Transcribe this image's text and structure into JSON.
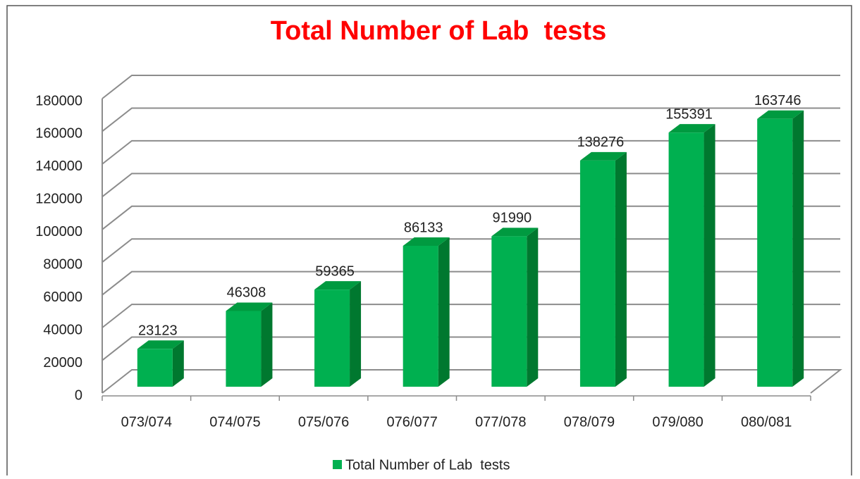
{
  "chart_data": {
    "type": "bar3d",
    "title": "Total Number of Lab  tests",
    "categories": [
      "073/074",
      "074/075",
      "075/076",
      "076/077",
      "077/078",
      "078/079",
      "079/080",
      "080/081"
    ],
    "series": [
      {
        "name": "Total Number of Lab  tests",
        "color": "#00b050",
        "values": [
          23123,
          46308,
          59365,
          86133,
          91990,
          138276,
          155391,
          163746
        ]
      }
    ],
    "ylim": [
      0,
      180000
    ],
    "yticks": [
      0,
      20000,
      40000,
      60000,
      80000,
      100000,
      120000,
      140000,
      160000,
      180000
    ],
    "grid": true,
    "legend": "bottom"
  }
}
